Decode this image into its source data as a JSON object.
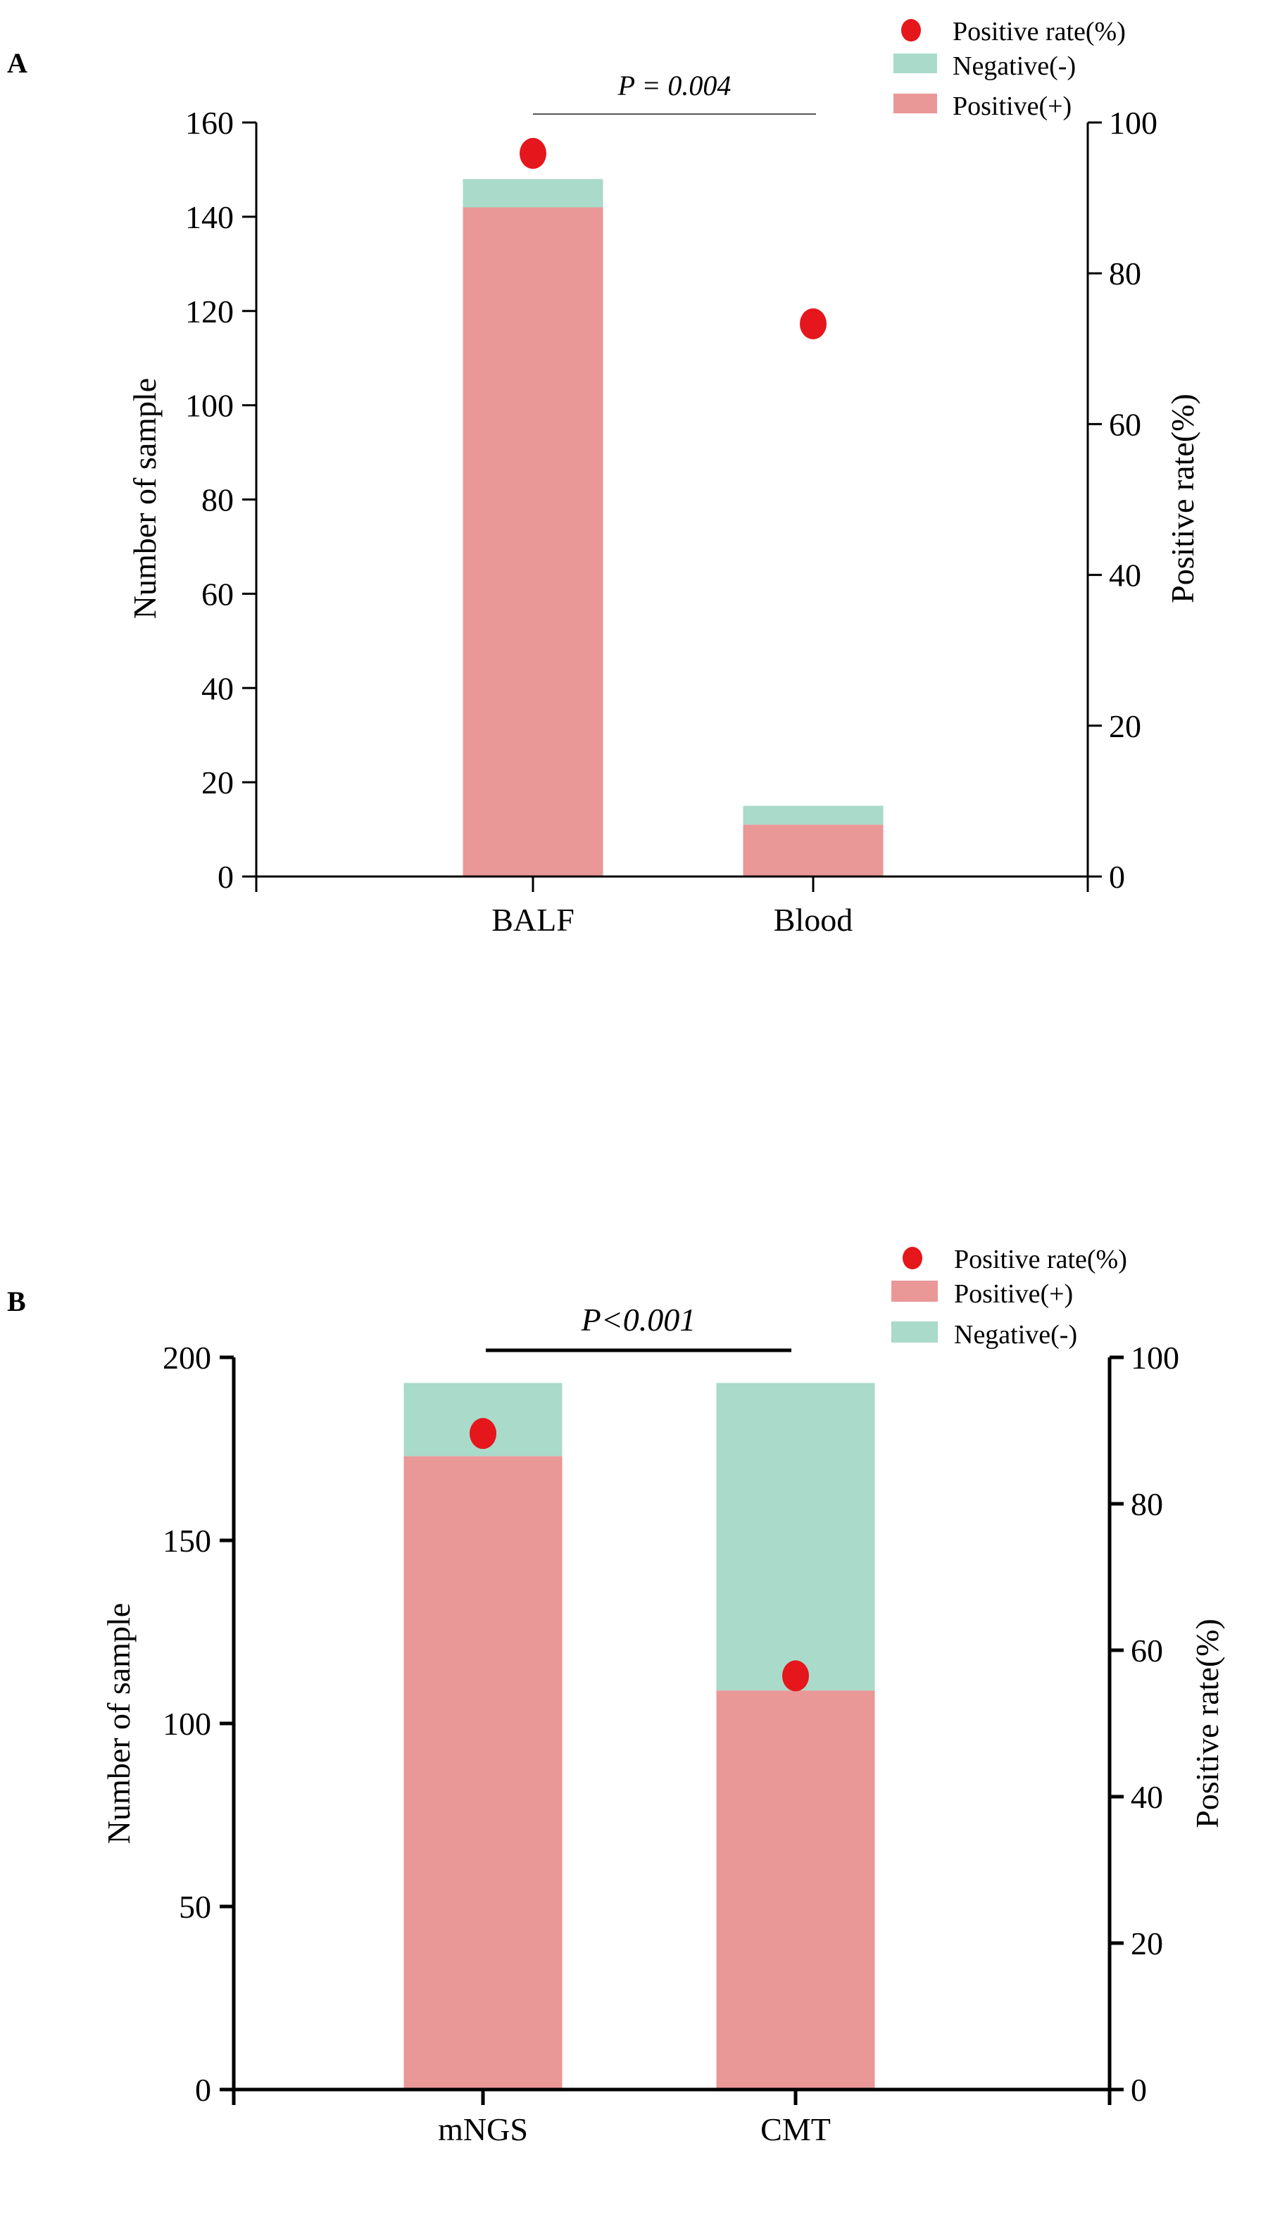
{
  "chart_data": [
    {
      "type": "bar",
      "stacked": true,
      "panel_label": "A",
      "categories": [
        "BALF",
        "Blood"
      ],
      "series": [
        {
          "name": "Positive(+)",
          "values": [
            142,
            11
          ],
          "color": "#EA9797",
          "axis": "left"
        },
        {
          "name": "Negative(-)",
          "values": [
            6,
            4
          ],
          "color": "#AADAC9",
          "axis": "left"
        },
        {
          "name": "Positive rate(%)",
          "type": "scatter",
          "values": [
            95.9,
            73.3
          ],
          "color": "#E5161C",
          "axis": "right"
        }
      ],
      "legend_order": [
        "Positive rate(%)",
        "Negative(-)",
        "Positive(+)"
      ],
      "legend_position": "top-right",
      "ylabel": "Number of sample",
      "ylim": [
        0,
        160
      ],
      "yticks": [
        "0",
        "20",
        "40",
        "60",
        "80",
        "100",
        "120",
        "140",
        "160"
      ],
      "y2label": "Positive rate(%)",
      "y2lim": [
        0,
        100
      ],
      "y2ticks": [
        "0",
        "20",
        "40",
        "60",
        "80",
        "100"
      ],
      "annotation": "P = 0.004",
      "grid": false
    },
    {
      "type": "bar",
      "stacked": true,
      "panel_label": "B",
      "categories": [
        "mNGS",
        "CMT"
      ],
      "series": [
        {
          "name": "Positive(+)",
          "values": [
            173,
            109
          ],
          "color": "#EA9797",
          "axis": "left"
        },
        {
          "name": "Negative(-)",
          "values": [
            20,
            84
          ],
          "color": "#AADAC9",
          "axis": "left"
        },
        {
          "name": "Positive rate(%)",
          "type": "scatter",
          "values": [
            89.6,
            56.5
          ],
          "color": "#E5161C",
          "axis": "right"
        }
      ],
      "legend_order": [
        "Positive rate(%)",
        "Positive(+)",
        "Negative(-)"
      ],
      "legend_position": "top-right",
      "ylabel": "Number of sample",
      "ylim": [
        0,
        200
      ],
      "yticks": [
        "0",
        "50",
        "100",
        "150",
        "200"
      ],
      "y2label": "Positive rate(%)",
      "y2lim": [
        0,
        100
      ],
      "y2ticks": [
        "0",
        "20",
        "40",
        "60",
        "80",
        "100"
      ],
      "annotation": "P<0.001",
      "grid": false
    }
  ]
}
